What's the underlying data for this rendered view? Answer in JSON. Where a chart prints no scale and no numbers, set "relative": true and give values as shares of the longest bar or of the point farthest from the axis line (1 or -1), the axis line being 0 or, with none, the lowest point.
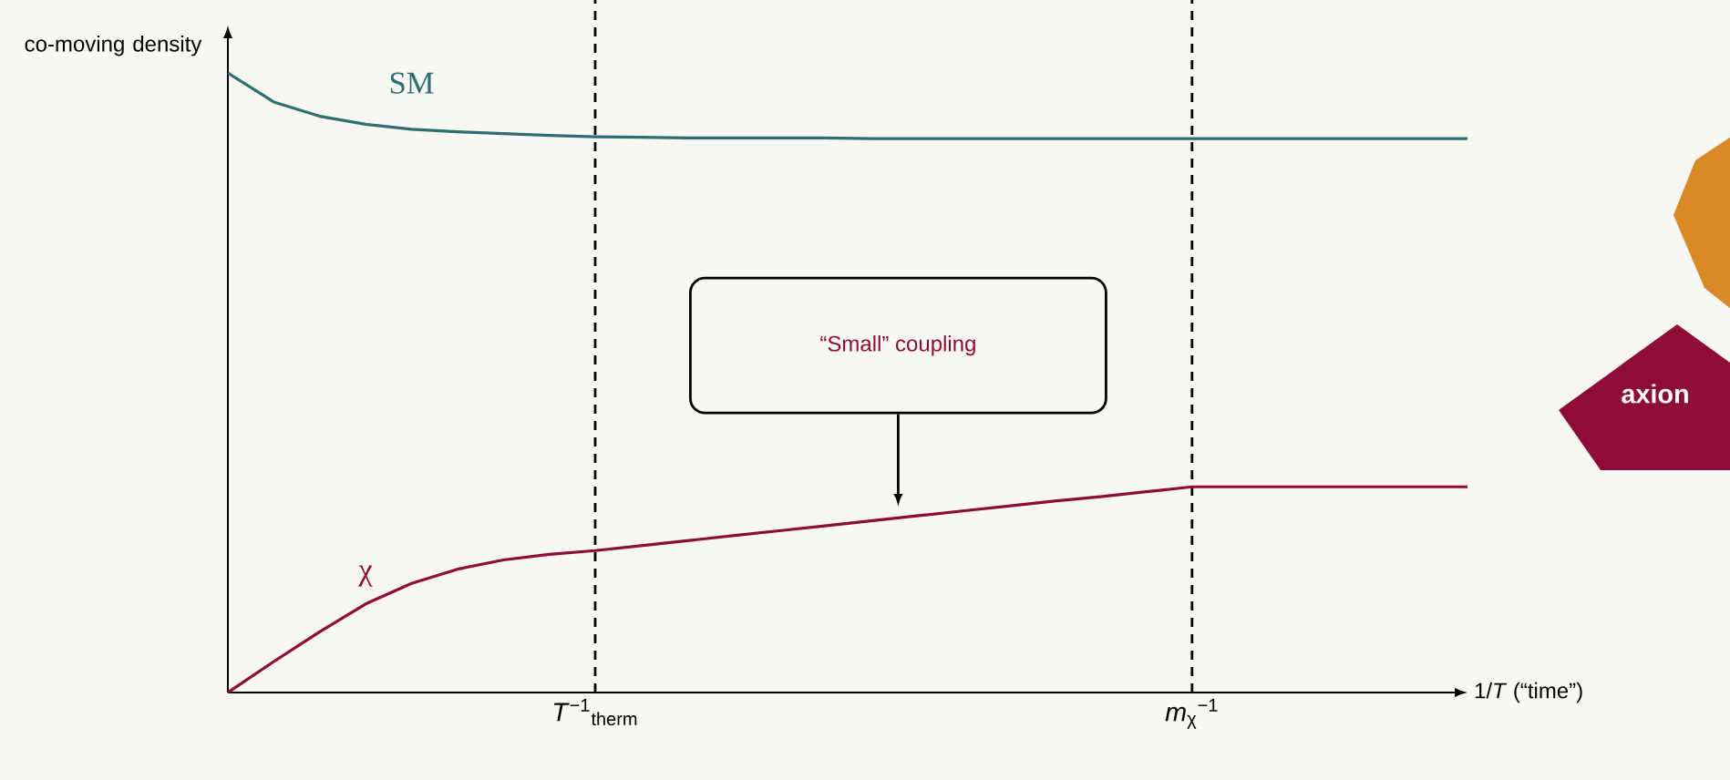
{
  "chart_data": {
    "type": "line",
    "relative": true,
    "ylabel": "co-moving density",
    "xlabel": "1/*T* (“time”)",
    "categories": [
      null,
      null,
      null,
      null,
      null,
      null,
      null,
      null,
      "*T*$^{−1}$$_{therm}$",
      null,
      null,
      null,
      null,
      null,
      null,
      null,
      null,
      null,
      null,
      null,
      null,
      "*m*$_{χ}$$^{−1}$",
      null,
      null,
      null,
      null,
      null,
      null
    ],
    "series": [
      {
        "name": "SM",
        "color": "#2e6e73",
        "values": [
          1,
          0.953,
          0.93,
          0.917,
          0.909,
          0.905,
          0.902,
          0.899,
          0.897,
          0.896,
          0.895,
          0.895,
          0.895,
          0.895,
          0.894,
          0.894,
          0.894,
          0.894,
          0.894,
          0.894,
          0.894,
          0.894,
          0.894,
          0.894,
          0.894,
          0.894,
          0.894,
          0.894
        ]
      },
      {
        "name": "χ",
        "color": "#8e0b3a",
        "values": [
          0,
          0.05,
          0.098,
          0.143,
          0.176,
          0.199,
          0.214,
          0.223,
          0.229,
          0.237,
          0.245,
          0.253,
          0.261,
          0.269,
          0.277,
          0.285,
          0.293,
          0.301,
          0.309,
          0.316,
          0.324,
          0.332,
          0.332,
          0.332,
          0.332,
          0.332,
          0.332,
          0.332
        ]
      }
    ],
    "ref_lines": [
      {
        "axis": "x",
        "value": "*T*$^{−1}$$_{therm}$",
        "line_style": "dashed",
        "color": "#000000"
      },
      {
        "axis": "x",
        "value": "*m*$_{χ}$$^{−1}$",
        "line_style": "dashed",
        "color": "#000000"
      }
    ],
    "annotations": [
      "“Small” coupling",
      "axion"
    ]
  }
}
